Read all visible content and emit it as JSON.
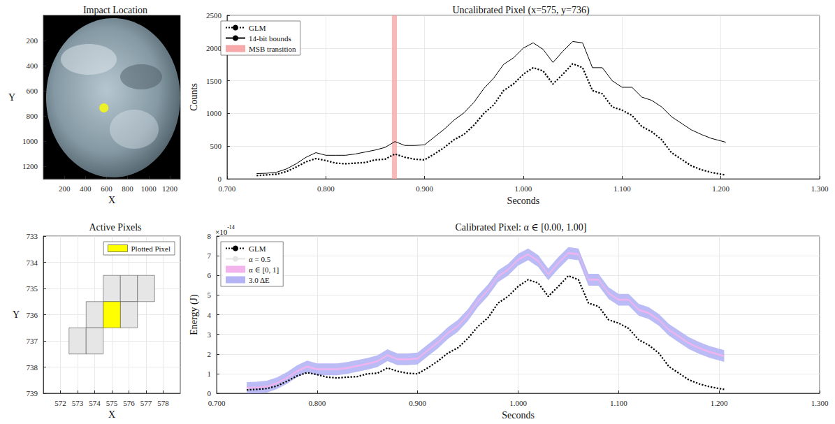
{
  "chart_data": [
    {
      "type": "scatter",
      "title": "Impact Location",
      "x_label": "X",
      "y_label": "Y",
      "xlim": [
        0,
        1300
      ],
      "ylim": [
        1300,
        0
      ],
      "xticks": [
        200,
        400,
        600,
        800,
        1000,
        1200
      ],
      "yticks": [
        200,
        400,
        600,
        800,
        1000,
        1200
      ],
      "grid": false,
      "series": [
        {
          "color": "#ffff00",
          "marker": "circle",
          "x": [
            575
          ],
          "y": [
            736
          ]
        }
      ]
    },
    {
      "type": "cells",
      "title": "Active Pixels",
      "x_label": "X",
      "y_label": "Y",
      "xlim": [
        571,
        579
      ],
      "ylim": [
        739,
        733
      ],
      "xticks": [
        572,
        573,
        574,
        575,
        576,
        577,
        578
      ],
      "yticks": [
        733,
        734,
        735,
        736,
        737,
        738,
        739
      ],
      "grid": true,
      "legend": "upper right",
      "series": [
        {
          "color": "#e6e6e6",
          "x": [
            575,
            576,
            577,
            574,
            576,
            573,
            574
          ],
          "y": [
            735,
            735,
            735,
            736,
            736,
            737,
            737
          ]
        },
        {
          "name": "Plotted Pixel",
          "color": "#ffff00",
          "x": [
            575
          ],
          "y": [
            736
          ]
        }
      ]
    },
    {
      "type": "line",
      "title": "Uncalibrated Pixel (x=575, y=736)",
      "x_label": "Seconds",
      "y_label": "Counts",
      "xlim": [
        0.7,
        1.3
      ],
      "ylim": [
        0,
        2500
      ],
      "xticks": [
        {
          "value": 0.7,
          "label": "0.700"
        },
        {
          "value": 0.8,
          "label": "0.800"
        },
        {
          "value": 0.9,
          "label": "0.900"
        },
        {
          "value": 1.0,
          "label": "1.000"
        },
        {
          "value": 1.1,
          "label": "1.100"
        },
        {
          "value": 1.2,
          "label": "1.200"
        },
        {
          "value": 1.3,
          "label": "1.300"
        }
      ],
      "yticks": [
        0,
        500,
        1000,
        1500,
        2000,
        2500
      ],
      "grid": true,
      "legend": "upper left",
      "x": [
        0.73,
        0.74,
        0.75,
        0.76,
        0.77,
        0.78,
        0.79,
        0.8,
        0.81,
        0.82,
        0.83,
        0.84,
        0.85,
        0.86,
        0.87,
        0.88,
        0.89,
        0.9,
        0.91,
        0.92,
        0.93,
        0.94,
        0.95,
        0.96,
        0.97,
        0.98,
        0.99,
        1.0,
        1.01,
        1.02,
        1.03,
        1.04,
        1.05,
        1.06,
        1.07,
        1.08,
        1.09,
        1.1,
        1.11,
        1.12,
        1.13,
        1.14,
        1.15,
        1.16,
        1.17,
        1.18,
        1.19,
        1.2,
        1.205
      ],
      "series": [
        {
          "name": "GLM",
          "color": "#000000",
          "type": "line",
          "line_style": "dotted",
          "values": [
            50,
            60,
            70,
            110,
            180,
            260,
            310,
            280,
            240,
            230,
            240,
            250,
            290,
            300,
            380,
            330,
            300,
            290,
            380,
            480,
            600,
            680,
            820,
            1000,
            1130,
            1350,
            1450,
            1600,
            1700,
            1650,
            1450,
            1600,
            1760,
            1700,
            1350,
            1300,
            1100,
            1050,
            970,
            800,
            720,
            600,
            400,
            300,
            200,
            140,
            100,
            70,
            60
          ]
        },
        {
          "name": "14-bit bounds",
          "color": "#000000",
          "type": "line",
          "line_style": "solid",
          "values": [
            80,
            85,
            100,
            150,
            230,
            330,
            400,
            360,
            360,
            360,
            380,
            410,
            440,
            480,
            570,
            510,
            510,
            520,
            640,
            760,
            900,
            1010,
            1170,
            1380,
            1540,
            1750,
            1850,
            2000,
            2080,
            1980,
            1780,
            1950,
            2100,
            2080,
            1700,
            1700,
            1500,
            1400,
            1400,
            1250,
            1200,
            1100,
            950,
            850,
            750,
            680,
            620,
            580,
            560
          ]
        },
        {
          "name": "MSB transition",
          "color": "#f7a8a8",
          "type": "span",
          "x_range": [
            0.867,
            0.872
          ]
        }
      ]
    },
    {
      "type": "line",
      "title": "Calibrated Pixel: α ∈ [0.00, 1.00]",
      "x_label": "Seconds",
      "y_label": "Energy (J)",
      "y_scale_label": {
        "base": "×10",
        "exponent": "-14"
      },
      "xlim": [
        0.7,
        1.3
      ],
      "ylim": [
        0,
        8
      ],
      "xticks": [
        {
          "value": 0.7,
          "label": "0.700"
        },
        {
          "value": 0.8,
          "label": "0.800"
        },
        {
          "value": 0.9,
          "label": "0.900"
        },
        {
          "value": 1.0,
          "label": "1.000"
        },
        {
          "value": 1.1,
          "label": "1.100"
        },
        {
          "value": 1.2,
          "label": "1.200"
        },
        {
          "value": 1.3,
          "label": "1.300"
        }
      ],
      "yticks": [
        0,
        1,
        2,
        3,
        4,
        5,
        6,
        7,
        8
      ],
      "grid": true,
      "legend": "upper left",
      "x": [
        0.73,
        0.74,
        0.75,
        0.76,
        0.77,
        0.78,
        0.79,
        0.8,
        0.81,
        0.82,
        0.83,
        0.84,
        0.85,
        0.86,
        0.87,
        0.88,
        0.89,
        0.9,
        0.91,
        0.92,
        0.93,
        0.94,
        0.95,
        0.96,
        0.97,
        0.98,
        0.99,
        1.0,
        1.01,
        1.02,
        1.03,
        1.04,
        1.05,
        1.06,
        1.07,
        1.08,
        1.09,
        1.1,
        1.11,
        1.12,
        1.13,
        1.14,
        1.15,
        1.16,
        1.17,
        1.18,
        1.19,
        1.2,
        1.205
      ],
      "series": [
        {
          "name": "GLM",
          "color": "#000000",
          "type": "line",
          "line_style": "dotted",
          "values": [
            0.17,
            0.2,
            0.24,
            0.37,
            0.61,
            0.88,
            1.05,
            0.95,
            0.82,
            0.78,
            0.82,
            0.85,
            0.99,
            1.02,
            1.29,
            1.12,
            1.02,
            0.99,
            1.29,
            1.63,
            2.04,
            2.31,
            2.79,
            3.4,
            3.84,
            4.59,
            4.93,
            5.44,
            5.78,
            5.61,
            4.93,
            5.44,
            5.98,
            5.78,
            4.59,
            4.42,
            3.74,
            3.57,
            3.3,
            2.72,
            2.45,
            2.04,
            1.36,
            1.02,
            0.68,
            0.48,
            0.34,
            0.24,
            0.2
          ]
        },
        {
          "name": "α = 0.5",
          "color": "#e4e4e4",
          "type": "line",
          "line_style": "solid",
          "values": [
            0.27,
            0.29,
            0.34,
            0.51,
            0.78,
            1.12,
            1.36,
            1.22,
            1.22,
            1.22,
            1.29,
            1.39,
            1.5,
            1.63,
            1.94,
            1.73,
            1.73,
            1.77,
            2.18,
            2.58,
            3.06,
            3.43,
            3.98,
            4.69,
            5.24,
            5.95,
            6.29,
            6.8,
            7.07,
            6.73,
            6.05,
            6.63,
            7.14,
            7.07,
            5.78,
            5.78,
            5.1,
            4.76,
            4.76,
            4.25,
            4.08,
            3.74,
            3.23,
            2.89,
            2.55,
            2.31,
            2.11,
            1.97,
            1.9
          ]
        },
        {
          "name": "α ∈ [0, 1]",
          "color": "#f3b4ee",
          "type": "band",
          "half_width": 0.05,
          "values": [
            0.27,
            0.29,
            0.34,
            0.51,
            0.78,
            1.12,
            1.36,
            1.22,
            1.22,
            1.22,
            1.29,
            1.39,
            1.5,
            1.63,
            1.94,
            1.73,
            1.73,
            1.77,
            2.18,
            2.58,
            3.06,
            3.43,
            3.98,
            4.69,
            5.24,
            5.95,
            6.29,
            6.8,
            7.07,
            6.73,
            6.05,
            6.63,
            7.14,
            7.07,
            5.78,
            5.78,
            5.1,
            4.76,
            4.76,
            4.25,
            4.08,
            3.74,
            3.23,
            2.89,
            2.55,
            2.31,
            2.11,
            1.97,
            1.9
          ]
        },
        {
          "name": "3.0 ΔE",
          "color": "#b4b4f4",
          "type": "band",
          "half_width": 0.3,
          "values": [
            0.27,
            0.29,
            0.34,
            0.51,
            0.78,
            1.12,
            1.36,
            1.22,
            1.22,
            1.22,
            1.29,
            1.39,
            1.5,
            1.63,
            1.94,
            1.73,
            1.73,
            1.77,
            2.18,
            2.58,
            3.06,
            3.43,
            3.98,
            4.69,
            5.24,
            5.95,
            6.29,
            6.8,
            7.07,
            6.73,
            6.05,
            6.63,
            7.14,
            7.07,
            5.78,
            5.78,
            5.1,
            4.76,
            4.76,
            4.25,
            4.08,
            3.74,
            3.23,
            2.89,
            2.55,
            2.31,
            2.11,
            1.97,
            1.9
          ]
        }
      ]
    }
  ]
}
